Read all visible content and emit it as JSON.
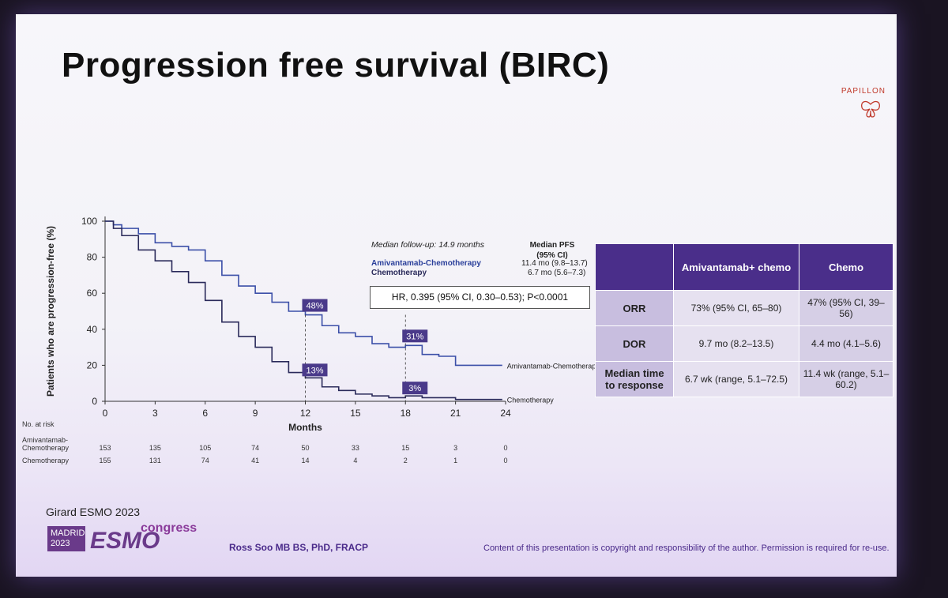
{
  "slide": {
    "title": "Progression free survival (BIRC)",
    "logo_text": "PAPILLON",
    "citation": "Girard ESMO 2023",
    "badge_line1": "MADRID",
    "badge_line2": "2023",
    "esmo": "ESMO",
    "congress": "congress",
    "presenter": "Ross Soo MB BS, PhD, FRACP",
    "copyright": "Content of this presentation is copyright and responsibility of the author. Permission is required for re-use."
  },
  "chart_data": {
    "type": "line",
    "ylabel": "Patients who are progression-free (%)",
    "xlabel": "Months",
    "xlim": [
      0,
      24
    ],
    "ylim": [
      0,
      100
    ],
    "x_ticks": [
      "0",
      "3",
      "6",
      "9",
      "12",
      "15",
      "18",
      "21",
      "24"
    ],
    "y_ticks": [
      "0",
      "20",
      "40",
      "60",
      "80",
      "100"
    ],
    "series": [
      {
        "name": "Amivantamab-Chemotherapy",
        "color": "#3b4fa8",
        "points": [
          [
            0,
            100
          ],
          [
            0.5,
            98
          ],
          [
            1,
            96
          ],
          [
            2,
            93
          ],
          [
            3,
            88
          ],
          [
            4,
            86
          ],
          [
            5,
            84
          ],
          [
            6,
            78
          ],
          [
            7,
            70
          ],
          [
            8,
            64
          ],
          [
            9,
            60
          ],
          [
            10,
            55
          ],
          [
            11,
            50
          ],
          [
            12,
            48
          ],
          [
            13,
            42
          ],
          [
            14,
            38
          ],
          [
            15,
            36
          ],
          [
            16,
            32
          ],
          [
            17,
            30
          ],
          [
            18,
            31
          ],
          [
            19,
            26
          ],
          [
            20,
            25
          ],
          [
            21,
            20
          ],
          [
            22,
            20
          ],
          [
            23,
            20
          ],
          [
            23.8,
            20
          ]
        ]
      },
      {
        "name": "Chemotherapy",
        "color": "#2a2a5a",
        "points": [
          [
            0,
            100
          ],
          [
            0.5,
            96
          ],
          [
            1,
            92
          ],
          [
            2,
            84
          ],
          [
            3,
            78
          ],
          [
            4,
            72
          ],
          [
            5,
            66
          ],
          [
            6,
            56
          ],
          [
            7,
            44
          ],
          [
            8,
            36
          ],
          [
            9,
            30
          ],
          [
            10,
            22
          ],
          [
            11,
            16
          ],
          [
            12,
            13
          ],
          [
            13,
            8
          ],
          [
            14,
            6
          ],
          [
            15,
            4
          ],
          [
            16,
            3
          ],
          [
            17,
            2
          ],
          [
            18,
            3
          ],
          [
            19,
            2
          ],
          [
            20,
            2
          ],
          [
            21,
            1
          ],
          [
            22,
            1
          ],
          [
            23,
            1
          ],
          [
            23.8,
            1
          ]
        ]
      }
    ],
    "annotations": [
      {
        "label": "48%",
        "x": 12,
        "y": 48,
        "series": "Amivantamab-Chemotherapy"
      },
      {
        "label": "13%",
        "x": 12,
        "y": 13,
        "series": "Chemotherapy"
      },
      {
        "label": "31%",
        "x": 18,
        "y": 31,
        "series": "Amivantamab-Chemotherapy"
      },
      {
        "label": "3%",
        "x": 18,
        "y": 3,
        "series": "Chemotherapy"
      }
    ],
    "end_labels": [
      "Amivantamab-Chemotherapy",
      "Chemotherapy"
    ],
    "median_followup": "Median follow-up: 14.9 months",
    "median_pfs_header_line1": "Median PFS",
    "median_pfs_header_line2": "(95% CI)",
    "arm_a": "Amivantamab-Chemotherapy",
    "arm_a_pfs": "11.4 mo (9.8–13.7)",
    "arm_b": "Chemotherapy",
    "arm_b_pfs": "6.7 mo (5.6–7.3)",
    "hr_text": "HR, 0.395 (95% CI, 0.30–0.53); P<0.0001",
    "risk_table": {
      "title": "No. at risk",
      "rows": [
        {
          "label": "Amivantamab-Chemotherapy",
          "values": [
            "153",
            "135",
            "105",
            "74",
            "50",
            "33",
            "15",
            "3",
            "0"
          ]
        },
        {
          "label": "Chemotherapy",
          "values": [
            "155",
            "131",
            "74",
            "41",
            "14",
            "4",
            "2",
            "1",
            "0"
          ]
        }
      ]
    }
  },
  "response_table": {
    "headers": [
      "",
      "Amivantamab+ chemo",
      "Chemo"
    ],
    "rows": [
      {
        "label": "ORR",
        "c1": "73% (95% CI, 65–80)",
        "c2": "47% (95% CI, 39–56)"
      },
      {
        "label": "DOR",
        "c1": "9.7 mo (8.2–13.5)",
        "c2": "4.4 mo (4.1–5.6)"
      },
      {
        "label": "Median time to response",
        "c1": "6.7 wk (range, 5.1–72.5)",
        "c2": "11.4 wk (range, 5.1–60.2)"
      }
    ]
  }
}
